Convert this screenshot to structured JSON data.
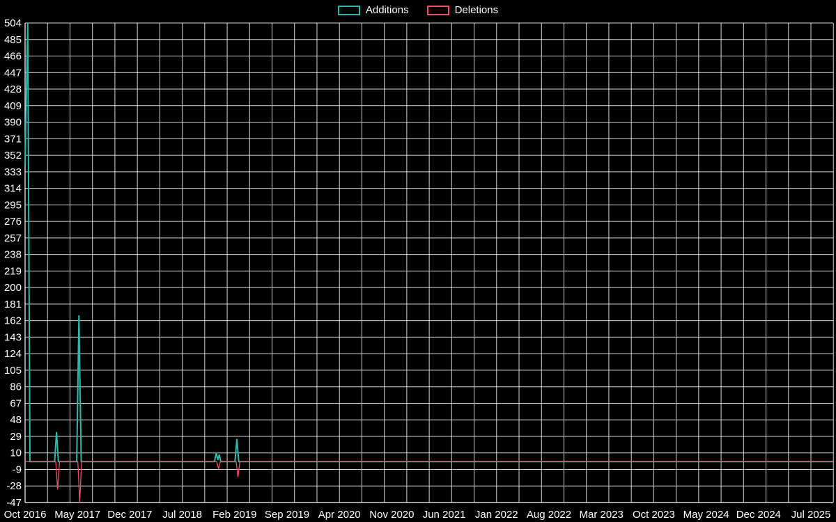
{
  "legend": {
    "items": [
      {
        "label": "Additions",
        "color": "#2fb8ad"
      },
      {
        "label": "Deletions",
        "color": "#ef5366"
      }
    ]
  },
  "chart_data": {
    "type": "line",
    "title": "",
    "xlabel": "",
    "ylabel": "",
    "background_color": "#000000",
    "grid_color": "rgba(255,255,255,0.85)",
    "text_color": "#ffffff",
    "ylim": [
      -47,
      504
    ],
    "y_ticks": [
      504,
      485,
      466,
      447,
      428,
      409,
      390,
      371,
      352,
      333,
      314,
      295,
      276,
      257,
      238,
      219,
      200,
      181,
      162,
      143,
      124,
      105,
      86,
      67,
      48,
      29,
      10,
      -9,
      -28,
      -47
    ],
    "x_tick_labels": [
      "Oct 2016",
      "May 2017",
      "Dec 2017",
      "Jul 2018",
      "Feb 2019",
      "Sep 2019",
      "Apr 2020",
      "Nov 2020",
      "Jun 2021",
      "Jan 2022",
      "Aug 2022",
      "Mar 2023",
      "Oct 2023",
      "May 2024",
      "Dec 2024",
      "Jul 2025"
    ],
    "x_tick_months": [
      0,
      7,
      14,
      21,
      28,
      35,
      42,
      49,
      56,
      63,
      70,
      77,
      84,
      91,
      98,
      105
    ],
    "x_total_months": 108,
    "vertical_grid_step_months": 3,
    "series": [
      {
        "name": "Additions",
        "color": "#2fb8ad",
        "points": [
          [
            0,
            340
          ],
          [
            0.35,
            504
          ],
          [
            0.65,
            0
          ],
          [
            3.95,
            0
          ],
          [
            4.2,
            34
          ],
          [
            4.45,
            0
          ],
          [
            6.9,
            0
          ],
          [
            7.2,
            168
          ],
          [
            7.5,
            0
          ],
          [
            25.3,
            0
          ],
          [
            25.55,
            10
          ],
          [
            25.75,
            2
          ],
          [
            25.95,
            8
          ],
          [
            26.15,
            0
          ],
          [
            28.05,
            0
          ],
          [
            28.3,
            26
          ],
          [
            28.55,
            0
          ],
          [
            108,
            0
          ]
        ]
      },
      {
        "name": "Deletions",
        "color": "#ef5366",
        "points": [
          [
            0,
            0
          ],
          [
            4.1,
            0
          ],
          [
            4.35,
            -32
          ],
          [
            4.6,
            0
          ],
          [
            7.05,
            0
          ],
          [
            7.3,
            -47
          ],
          [
            7.55,
            0
          ],
          [
            25.6,
            0
          ],
          [
            25.85,
            -8
          ],
          [
            26.1,
            0
          ],
          [
            28.2,
            0
          ],
          [
            28.45,
            -18
          ],
          [
            28.7,
            0
          ],
          [
            108,
            0
          ]
        ]
      }
    ]
  }
}
